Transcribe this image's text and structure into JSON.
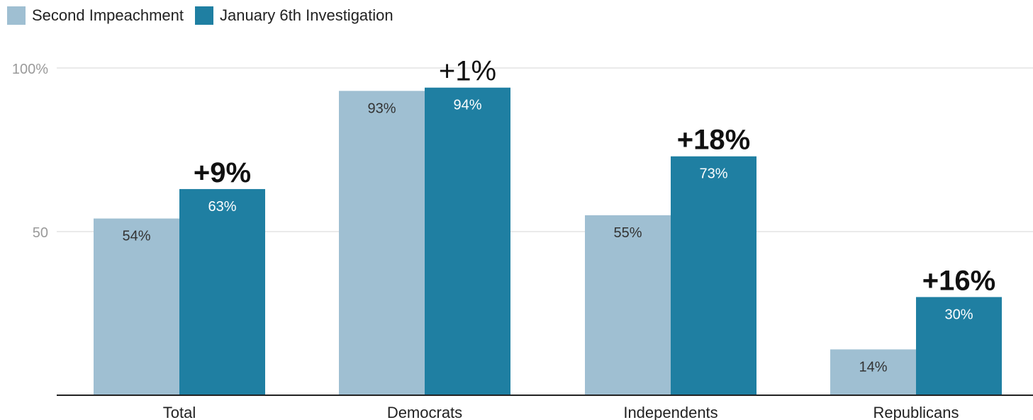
{
  "chart_data": {
    "type": "bar",
    "categories": [
      "Total",
      "Democrats",
      "Independents",
      "Republicans"
    ],
    "series": [
      {
        "name": "Second Impeachment",
        "color": "#9fbfd2",
        "values": [
          54,
          93,
          55,
          14
        ],
        "labels": [
          "54%",
          "93%",
          "55%",
          "14%"
        ]
      },
      {
        "name": "January 6th Investigation",
        "color": "#1f7fa2",
        "values": [
          63,
          94,
          73,
          30
        ],
        "labels": [
          "63%",
          "94%",
          "73%",
          "30%"
        ]
      }
    ],
    "annotations": [
      "+9%",
      "+1%",
      "+18%",
      "+16%"
    ],
    "annotation_bold": [
      true,
      false,
      true,
      true
    ],
    "yticks": [
      {
        "value": 100,
        "label": "100%"
      },
      {
        "value": 50,
        "label": "50"
      }
    ],
    "ylim": [
      0,
      100
    ],
    "grid": true,
    "legend_position": "top-left",
    "title": "",
    "xlabel": "",
    "ylabel": ""
  }
}
